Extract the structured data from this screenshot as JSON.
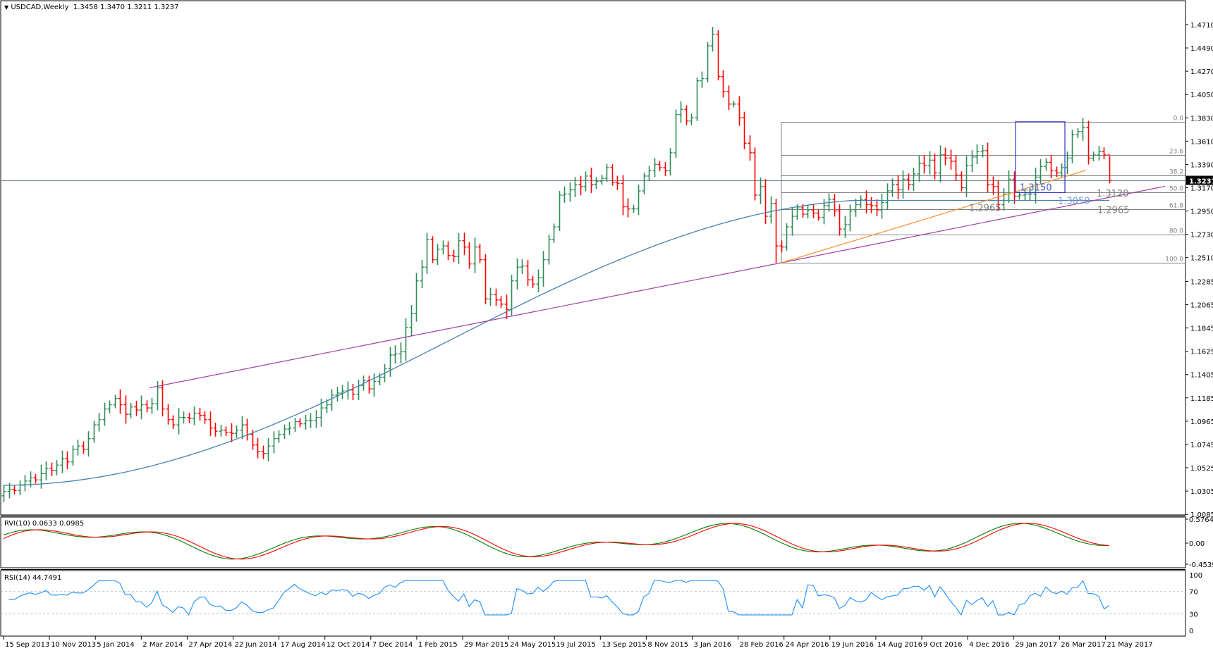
{
  "header": {
    "symbol_label": "USDCAD,Weekly",
    "ohlc": "1.3458 1.3470 1.3211 1.3237",
    "menu_icon": "triangle-down-icon"
  },
  "colors": {
    "bull": "#2e8b57",
    "bear": "#ff0000",
    "ma": "#4682b4",
    "trend_purple": "#a040a0",
    "trend_orange": "#ff8c2a",
    "fib": "#808080",
    "box": "#3333cc",
    "label_blue": "#4a52c8",
    "label_lightblue": "#7a9cd8",
    "label_gray": "#808080",
    "rvi_main": "#008000",
    "rvi_signal": "#ff0000",
    "rsi": "#1e90ff",
    "current_price_bg": "#000000"
  },
  "price_axis": {
    "ticks": [
      "1.4710",
      "1.4490",
      "1.4270",
      "1.4050",
      "1.3830",
      "1.3610",
      "1.3390",
      "1.3170",
      "1.2950",
      "1.2730",
      "1.2510",
      "1.2285",
      "1.2065",
      "1.1845",
      "1.1625",
      "1.1405",
      "1.1185",
      "1.0965",
      "1.0745",
      "1.0525",
      "1.0305",
      "1.0085"
    ],
    "current_price": "1.3237"
  },
  "rvi": {
    "label": "RVI(10) 0.0633 0.0985",
    "ticks": [
      "0.5764",
      "0.00",
      "-0.4539"
    ]
  },
  "rsi": {
    "label": "RSI(14) 44.7491",
    "ticks": [
      "100",
      "70",
      "30",
      "0"
    ]
  },
  "time_axis": {
    "ticks": [
      "15 Sep 2013",
      "10 Nov 2013",
      "5 Jan 2014",
      "2 Mar 2014",
      "27 Apr 2014",
      "22 Jun 2014",
      "17 Aug 2014",
      "12 Oct 2014",
      "7 Dec 2014",
      "1 Feb 2015",
      "29 Mar 2015",
      "24 May 2015",
      "19 Jul 2015",
      "13 Sep 2015",
      "8 Nov 2015",
      "3 Jan 2016",
      "28 Feb 2016",
      "24 Apr 2016",
      "19 Jun 2016",
      "14 Aug 2016",
      "9 Oct 2016",
      "4 Dec 2016",
      "29 Jan 2017",
      "26 Mar 2017",
      "21 May 2017"
    ]
  },
  "fibonacci": {
    "levels": [
      {
        "label": "0.0",
        "price": 1.3793
      },
      {
        "label": "23.6",
        "price": 1.3478
      },
      {
        "label": "38.2",
        "price": 1.3283
      },
      {
        "label": "50.0",
        "price": 1.3127
      },
      {
        "label": "61.8",
        "price": 1.297
      },
      {
        "label": "80.0",
        "price": 1.2728
      },
      {
        "label": "100.0",
        "price": 1.2461
      }
    ]
  },
  "annotations": {
    "box_label": "1.3150",
    "purple_label": "1.3120",
    "ma_label": "1.3050",
    "fib_label": "1.2965",
    "orange_low_label": "1.2965"
  },
  "chart_data": {
    "type": "ohlc",
    "title": "USDCAD,Weekly 1.3458 1.3470 1.3211 1.3237",
    "xlabel": "",
    "ylabel": "",
    "ylim": [
      1.0085,
      1.471
    ],
    "x_range": [
      "15 Sep 2013",
      "11 Jun 2017"
    ],
    "closes": [
      1.03,
      1.032,
      1.031,
      1.036,
      1.04,
      1.043,
      1.041,
      1.047,
      1.052,
      1.05,
      1.055,
      1.061,
      1.058,
      1.07,
      1.073,
      1.07,
      1.08,
      1.093,
      1.098,
      1.108,
      1.112,
      1.118,
      1.112,
      1.103,
      1.11,
      1.107,
      1.112,
      1.109,
      1.113,
      1.128,
      1.108,
      1.098,
      1.093,
      1.1,
      1.1,
      1.099,
      1.104,
      1.102,
      1.098,
      1.09,
      1.087,
      1.088,
      1.086,
      1.085,
      1.088,
      1.093,
      1.084,
      1.074,
      1.068,
      1.066,
      1.073,
      1.08,
      1.084,
      1.089,
      1.09,
      1.096,
      1.094,
      1.097,
      1.097,
      1.1,
      1.109,
      1.112,
      1.121,
      1.123,
      1.125,
      1.126,
      1.122,
      1.13,
      1.135,
      1.127,
      1.134,
      1.138,
      1.146,
      1.159,
      1.16,
      1.162,
      1.185,
      1.198,
      1.229,
      1.242,
      1.268,
      1.249,
      1.259,
      1.262,
      1.253,
      1.252,
      1.267,
      1.261,
      1.245,
      1.261,
      1.249,
      1.212,
      1.216,
      1.211,
      1.207,
      1.202,
      1.229,
      1.242,
      1.243,
      1.23,
      1.226,
      1.232,
      1.249,
      1.268,
      1.28,
      1.31,
      1.311,
      1.315,
      1.32,
      1.318,
      1.328,
      1.32,
      1.323,
      1.326,
      1.336,
      1.322,
      1.321,
      1.299,
      1.297,
      1.297,
      1.314,
      1.328,
      1.333,
      1.339,
      1.336,
      1.333,
      1.35,
      1.386,
      1.391,
      1.38,
      1.383,
      1.418,
      1.42,
      1.451,
      1.462,
      1.422,
      1.408,
      1.396,
      1.396,
      1.383,
      1.359,
      1.35,
      1.31,
      1.318,
      1.29,
      1.302,
      1.262,
      1.261,
      1.28,
      1.29,
      1.298,
      1.292,
      1.296,
      1.293,
      1.289,
      1.3,
      1.306,
      1.295,
      1.278,
      1.282,
      1.295,
      1.301,
      1.306,
      1.301,
      1.3,
      1.296,
      1.303,
      1.314,
      1.32,
      1.315,
      1.325,
      1.32,
      1.33,
      1.34,
      1.338,
      1.343,
      1.331,
      1.348,
      1.345,
      1.342,
      1.329,
      1.317,
      1.338,
      1.346,
      1.351,
      1.352,
      1.32,
      1.318,
      1.301,
      1.311,
      1.325,
      1.309,
      1.31,
      1.311,
      1.311,
      1.327,
      1.337,
      1.341,
      1.333,
      1.331,
      1.336,
      1.345,
      1.367,
      1.37,
      1.374,
      1.345,
      1.348,
      1.351,
      1.348,
      1.3237
    ],
    "series": [
      {
        "name": "MA (blue)",
        "values_note": "rising slow moving average from ~1.04 to ~1.305"
      },
      {
        "name": "RVI(10) main",
        "last": 0.0633
      },
      {
        "name": "RVI(10) signal",
        "last": 0.0985
      },
      {
        "name": "RSI(14)",
        "last": 44.7491
      }
    ],
    "annotations": [
      "Fib 0.0 1.3793",
      "Fib 23.6",
      "Fib 38.2",
      "Fib 50.0",
      "Fib 61.8",
      "Fib 80.0",
      "Fib 100.0 1.2461",
      "1.3150",
      "1.3120",
      "1.3050",
      "1.2965"
    ]
  }
}
